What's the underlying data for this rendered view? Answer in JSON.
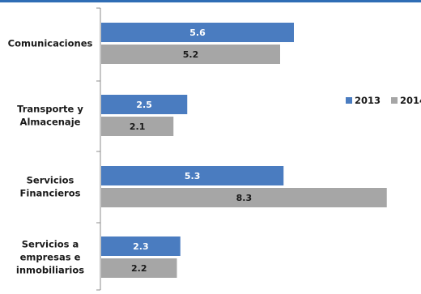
{
  "chart_data": {
    "type": "bar",
    "orientation": "horizontal",
    "categories": [
      [
        "Comunicaciones"
      ],
      [
        "Transporte y",
        "Almacenaje"
      ],
      [
        "Servicios",
        "Financieros"
      ],
      [
        "Servicios a",
        "empresas e",
        "inmobiliarios"
      ]
    ],
    "series": [
      {
        "name": "2013",
        "values": [
          5.6,
          2.5,
          5.3,
          2.3
        ],
        "color": "#4a7cc0",
        "label_color": "#ffffff"
      },
      {
        "name": "2014",
        "values": [
          5.2,
          2.1,
          8.3,
          2.2
        ],
        "color": "#a6a6a6",
        "label_color": "#1a1a1a"
      }
    ],
    "xlim": [
      0,
      10
    ],
    "grid": false,
    "legend_position": "right"
  }
}
